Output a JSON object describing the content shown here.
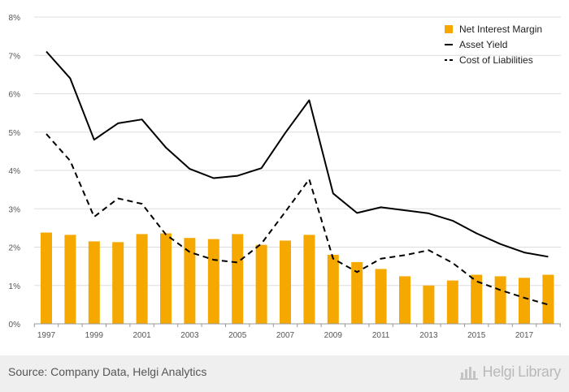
{
  "chart_data": {
    "type": "bar",
    "title": "",
    "xlabel": "",
    "ylabel": "",
    "ylim": [
      0,
      8
    ],
    "y_ticks": [
      "0%",
      "1%",
      "2%",
      "3%",
      "4%",
      "5%",
      "6%",
      "7%",
      "8%"
    ],
    "x": [
      1997,
      1998,
      1999,
      2000,
      2001,
      2002,
      2003,
      2004,
      2005,
      2006,
      2007,
      2008,
      2009,
      2010,
      2011,
      2012,
      2013,
      2014,
      2015,
      2016,
      2017,
      2018
    ],
    "x_tick_labels": [
      "1997",
      "1999",
      "2001",
      "2003",
      "2005",
      "2007",
      "2009",
      "2011",
      "2013",
      "2015",
      "2017"
    ],
    "grid": "horizontal",
    "legend_position": "top-right",
    "series": [
      {
        "name": "Net Interest Margin",
        "type": "bar",
        "color": "#f5a800",
        "values": [
          2.38,
          2.32,
          2.15,
          2.13,
          2.34,
          2.36,
          2.24,
          2.21,
          2.34,
          2.06,
          2.17,
          2.32,
          1.8,
          1.61,
          1.43,
          1.24,
          1.0,
          1.13,
          1.28,
          1.24,
          1.2,
          1.28
        ]
      },
      {
        "name": "Asset Yield",
        "type": "line",
        "style": "solid",
        "color": "#000000",
        "values": [
          7.1,
          6.4,
          4.8,
          5.23,
          5.33,
          4.6,
          4.04,
          3.8,
          3.86,
          4.06,
          4.98,
          5.83,
          3.4,
          2.89,
          3.04,
          2.96,
          2.88,
          2.69,
          2.36,
          2.08,
          1.86,
          1.75
        ]
      },
      {
        "name": "Cost of Liabilities",
        "type": "line",
        "style": "dashed",
        "color": "#000000",
        "values": [
          4.95,
          4.25,
          2.79,
          3.27,
          3.13,
          2.33,
          1.87,
          1.67,
          1.6,
          2.09,
          2.92,
          3.77,
          1.7,
          1.35,
          1.7,
          1.79,
          1.92,
          1.59,
          1.11,
          0.88,
          0.68,
          0.5
        ]
      }
    ]
  },
  "footer": {
    "source": "Source: Company Data, Helgi Analytics",
    "brand_helgi": "Helgi",
    "brand_library": "Library",
    "brand_icon": "bar-chart-logo-icon"
  }
}
